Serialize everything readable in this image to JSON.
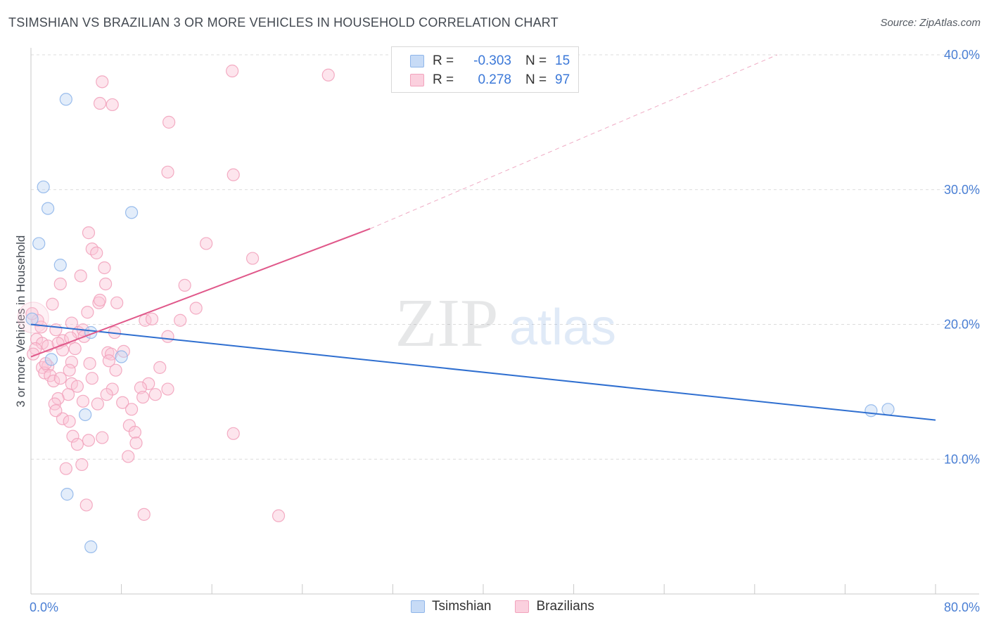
{
  "header": {
    "title": "TSIMSHIAN VS BRAZILIAN 3 OR MORE VEHICLES IN HOUSEHOLD CORRELATION CHART",
    "source": "Source: ZipAtlas.com"
  },
  "watermark": {
    "zip": "ZIP",
    "atlas": "atlas"
  },
  "legend": {
    "rows": [
      {
        "swatch_name": "tsimshian-swatch",
        "r_label": "R =",
        "r_value": "-0.303",
        "n_label": "N =",
        "n_value": "15",
        "color": "#8fb6ea"
      },
      {
        "swatch_name": "brazilians-swatch",
        "r_label": "R =",
        "r_value": "0.278",
        "n_label": "N =",
        "n_value": "97",
        "color": "#f2a3bd"
      }
    ]
  },
  "bottom_legend": {
    "tsimshian": "Tsimshian",
    "brazilians": "Brazilians"
  },
  "chart_data": {
    "type": "scatter",
    "title": "TSIMSHIAN VS BRAZILIAN 3 OR MORE VEHICLES IN HOUSEHOLD CORRELATION CHART",
    "xlabel": "",
    "ylabel": "3 or more Vehicles in Household",
    "xlim": [
      0,
      80
    ],
    "ylim": [
      0,
      40
    ],
    "x_tick_labels": [
      "0.0%",
      "80.0%"
    ],
    "y_ticks": [
      10,
      20,
      30,
      40
    ],
    "y_tick_labels": [
      "10.0%",
      "20.0%",
      "30.0%",
      "40.0%"
    ],
    "grid": true,
    "series": [
      {
        "name": "Tsimshian",
        "color": "#8fb6ea",
        "line_color": "#2f6fd0",
        "R": -0.303,
        "N": 15,
        "trend": {
          "x": [
            0,
            80
          ],
          "y": [
            20.0,
            12.9
          ]
        },
        "points": [
          [
            3.1,
            36.7
          ],
          [
            1.1,
            30.2
          ],
          [
            1.5,
            28.6
          ],
          [
            8.9,
            28.3
          ],
          [
            0.7,
            26.0
          ],
          [
            2.6,
            24.4
          ],
          [
            0.1,
            20.4
          ],
          [
            5.3,
            19.4
          ],
          [
            1.8,
            17.4
          ],
          [
            8.0,
            17.6
          ],
          [
            4.8,
            13.3
          ],
          [
            3.2,
            7.4
          ],
          [
            5.3,
            3.5
          ],
          [
            74.3,
            13.6
          ],
          [
            75.8,
            13.7
          ]
        ]
      },
      {
        "name": "Brazilians",
        "color": "#f2a3bd",
        "line_color": "#e0588a",
        "R": 0.278,
        "N": 97,
        "trend": {
          "x": [
            0,
            30
          ],
          "y": [
            17.6,
            27.1
          ],
          "dashed_to": [
            66,
            40
          ]
        },
        "points": [
          [
            17.8,
            38.8
          ],
          [
            26.3,
            38.5
          ],
          [
            6.3,
            38.0
          ],
          [
            6.1,
            36.4
          ],
          [
            7.2,
            36.3
          ],
          [
            12.2,
            35.0
          ],
          [
            12.1,
            31.3
          ],
          [
            17.9,
            31.1
          ],
          [
            5.1,
            26.8
          ],
          [
            15.5,
            26.0
          ],
          [
            5.4,
            25.6
          ],
          [
            19.6,
            24.9
          ],
          [
            5.8,
            25.3
          ],
          [
            6.5,
            24.2
          ],
          [
            4.4,
            23.6
          ],
          [
            2.6,
            23.0
          ],
          [
            6.6,
            23.0
          ],
          [
            13.6,
            22.9
          ],
          [
            6.0,
            21.6
          ],
          [
            7.6,
            21.6
          ],
          [
            14.6,
            21.2
          ],
          [
            5.0,
            20.9
          ],
          [
            10.1,
            20.3
          ],
          [
            10.7,
            20.4
          ],
          [
            13.2,
            20.3
          ],
          [
            0.6,
            20.3
          ],
          [
            0.9,
            19.8
          ],
          [
            2.2,
            19.6
          ],
          [
            3.6,
            20.1
          ],
          [
            4.2,
            19.4
          ],
          [
            4.6,
            19.6
          ],
          [
            7.4,
            19.4
          ],
          [
            12.1,
            19.1
          ],
          [
            0.5,
            18.9
          ],
          [
            1.0,
            18.6
          ],
          [
            1.5,
            18.4
          ],
          [
            2.8,
            18.8
          ],
          [
            3.5,
            19.0
          ],
          [
            4.7,
            19.1
          ],
          [
            0.4,
            18.2
          ],
          [
            2.4,
            18.6
          ],
          [
            2.8,
            18.1
          ],
          [
            0.2,
            17.8
          ],
          [
            6.8,
            17.9
          ],
          [
            7.1,
            17.8
          ],
          [
            3.6,
            17.2
          ],
          [
            5.2,
            17.1
          ],
          [
            6.9,
            17.3
          ],
          [
            1.0,
            16.8
          ],
          [
            1.5,
            16.9
          ],
          [
            7.5,
            16.6
          ],
          [
            3.4,
            16.6
          ],
          [
            1.2,
            16.4
          ],
          [
            1.7,
            16.2
          ],
          [
            5.4,
            16.0
          ],
          [
            11.4,
            16.8
          ],
          [
            2.0,
            15.8
          ],
          [
            3.6,
            15.6
          ],
          [
            10.4,
            15.6
          ],
          [
            7.2,
            15.2
          ],
          [
            9.7,
            15.3
          ],
          [
            12.1,
            15.2
          ],
          [
            3.3,
            14.8
          ],
          [
            6.7,
            14.8
          ],
          [
            11.0,
            14.8
          ],
          [
            2.4,
            14.5
          ],
          [
            4.6,
            14.3
          ],
          [
            2.1,
            14.1
          ],
          [
            8.1,
            14.2
          ],
          [
            8.9,
            13.7
          ],
          [
            2.8,
            13.0
          ],
          [
            3.4,
            12.8
          ],
          [
            8.7,
            12.5
          ],
          [
            9.2,
            12.0
          ],
          [
            3.7,
            11.7
          ],
          [
            5.1,
            11.4
          ],
          [
            6.3,
            11.6
          ],
          [
            4.1,
            11.1
          ],
          [
            9.3,
            11.2
          ],
          [
            17.9,
            11.9
          ],
          [
            8.6,
            10.2
          ],
          [
            4.5,
            9.6
          ],
          [
            3.1,
            9.3
          ],
          [
            4.9,
            6.6
          ],
          [
            10.0,
            5.9
          ],
          [
            21.9,
            5.8
          ],
          [
            0.1,
            20.8
          ],
          [
            1.3,
            17.1
          ],
          [
            2.6,
            16.0
          ],
          [
            3.9,
            18.2
          ],
          [
            5.9,
            14.1
          ],
          [
            8.2,
            18.0
          ],
          [
            9.9,
            14.6
          ],
          [
            6.1,
            21.8
          ],
          [
            4.1,
            15.4
          ],
          [
            2.2,
            13.6
          ],
          [
            1.9,
            21.5
          ]
        ]
      }
    ]
  }
}
